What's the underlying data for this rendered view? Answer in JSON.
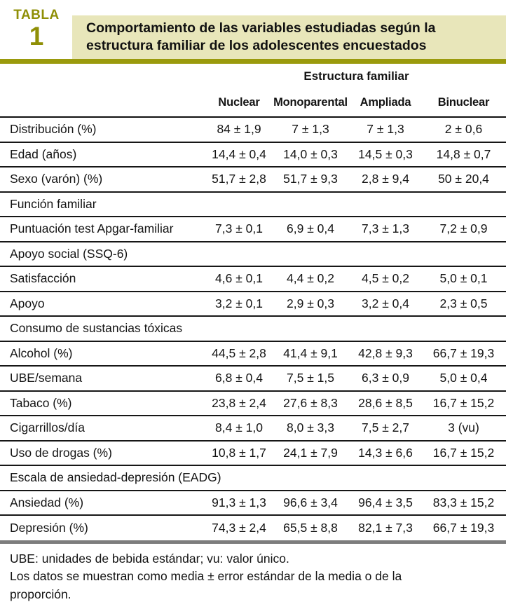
{
  "header": {
    "label_word": "TABLA",
    "label_number": "1",
    "title": "Comportamiento de las variables estudiadas según la estructura familiar de los adolescentes encuestados"
  },
  "colors": {
    "olive_accent": "#8f8f06",
    "olive_rule": "#9a9a0c",
    "khaki_title_background": "#e8e6ba",
    "text_ink": "#141414",
    "bottom_rule_gray": "#7d7d7d"
  },
  "table": {
    "group_header": "Estructura familiar",
    "columns": [
      "Nuclear",
      "Monoparental",
      "Ampliada",
      "Binuclear"
    ],
    "rows": [
      {
        "type": "data",
        "label": "Distribución (%)",
        "values": [
          "84 ± 1,9",
          "7 ± 1,3",
          "7 ± 1,3",
          "2 ± 0,6"
        ]
      },
      {
        "type": "data",
        "label": "Edad (años)",
        "values": [
          "14,4 ± 0,4",
          "14,0 ± 0,3",
          "14,5 ± 0,3",
          "14,8 ± 0,7"
        ]
      },
      {
        "type": "data",
        "label": "Sexo (varón) (%)",
        "values": [
          "51,7 ± 2,8",
          "51,7 ± 9,3",
          "2,8 ± 9,4",
          "50 ± 20,4"
        ]
      },
      {
        "type": "section",
        "label": "Función familiar",
        "values": []
      },
      {
        "type": "data",
        "label": "Puntuación test Apgar-familiar",
        "values": [
          "7,3 ± 0,1",
          "6,9 ± 0,4",
          "7,3 ± 1,3",
          "7,2 ± 0,9"
        ]
      },
      {
        "type": "section",
        "label": "Apoyo social (SSQ-6)",
        "values": []
      },
      {
        "type": "data",
        "label": "Satisfacción",
        "values": [
          "4,6 ± 0,1",
          "4,4 ± 0,2",
          "4,5 ± 0,2",
          "5,0 ± 0,1"
        ]
      },
      {
        "type": "data",
        "label": "Apoyo",
        "values": [
          "3,2 ± 0,1",
          "2,9 ± 0,3",
          "3,2 ± 0,4",
          "2,3 ± 0,5"
        ]
      },
      {
        "type": "section",
        "label": "Consumo de sustancias tóxicas",
        "values": []
      },
      {
        "type": "data",
        "label": "Alcohol (%)",
        "values": [
          "44,5 ± 2,8",
          "41,4 ± 9,1",
          "42,8 ± 9,3",
          "66,7 ± 19,3"
        ]
      },
      {
        "type": "data",
        "label": "UBE/semana",
        "values": [
          "6,8 ± 0,4",
          "7,5 ± 1,5",
          "6,3 ± 0,9",
          "5,0 ± 0,4"
        ]
      },
      {
        "type": "data",
        "label": "Tabaco (%)",
        "values": [
          "23,8 ± 2,4",
          "27,6 ± 8,3",
          "28,6 ± 8,5",
          "16,7 ± 15,2"
        ]
      },
      {
        "type": "data",
        "label": "Cigarrillos/día",
        "values": [
          "8,4 ± 1,0",
          "8,0 ± 3,3",
          "7,5 ± 2,7",
          "3 (vu)"
        ]
      },
      {
        "type": "data",
        "label": "Uso de drogas (%)",
        "values": [
          "10,8 ± 1,7",
          "24,1 ± 7,9",
          "14,3 ± 6,6",
          "16,7 ± 15,2"
        ]
      },
      {
        "type": "section",
        "label": "Escala de ansiedad-depresión (EADG)",
        "values": []
      },
      {
        "type": "data",
        "label": "Ansiedad (%)",
        "values": [
          "91,3 ± 1,3",
          "96,6 ± 3,4",
          "96,4 ± 3,5",
          "83,3 ± 15,2"
        ]
      },
      {
        "type": "data",
        "label": "Depresión (%)",
        "values": [
          "74,3 ± 2,4",
          "65,5 ± 8,8",
          "82,1 ± 7,3",
          "66,7 ± 19,3"
        ]
      }
    ]
  },
  "footnotes": [
    "UBE: unidades de bebida estándar; vu: valor único.",
    "Los datos se muestran como media ± error estándar de la media o de la proporción."
  ]
}
